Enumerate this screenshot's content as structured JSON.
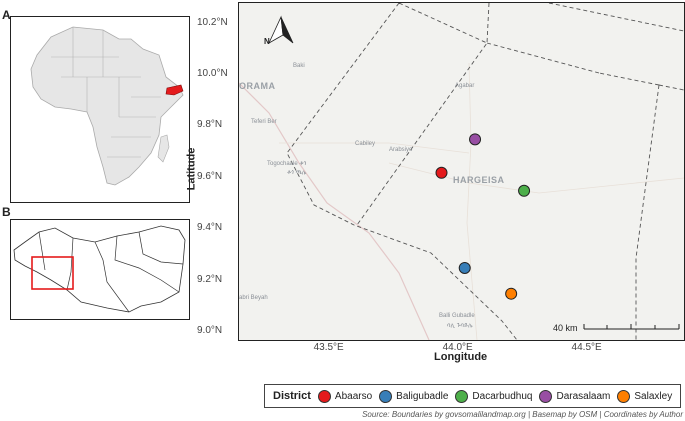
{
  "panels": {
    "a_label": "A",
    "b_label": "B"
  },
  "map": {
    "x_ticks": [
      "43.5°E",
      "44.0°E",
      "44.5°E"
    ],
    "y_ticks": [
      "10.2°N",
      "10.0°N",
      "9.8°N",
      "9.6°N",
      "9.4°N",
      "9.2°N",
      "9.0°N"
    ],
    "x_title": "Longitude",
    "y_title": "Latitude",
    "north_label": "N",
    "scale_label": "40 km",
    "basemap_labels": {
      "orama": "ORAMA",
      "baki": "Baki",
      "agabar": "Agabar",
      "teferi_ber": "Teferi Ber",
      "cabiley": "Cabiley",
      "arabsiyo": "Arabsiyo",
      "togochaale": "Togochaale ቶጎ",
      "togochaale2": "ቶጎ ጫሌ",
      "hargeisa": "HARGEISA",
      "abri_beyah": "abri Beyah",
      "balli_gubadle": "Balli Gubadle",
      "balli_gubadle2": "ባሊ ጉባድሌ"
    }
  },
  "districts": [
    {
      "name": "Abaarso",
      "lon": 43.93,
      "lat": 9.62,
      "color": "#e41a1c"
    },
    {
      "name": "Baligubadle",
      "lon": 44.02,
      "lat": 9.25,
      "color": "#377eb8"
    },
    {
      "name": "Dacarbudhuq",
      "lon": 44.25,
      "lat": 9.55,
      "color": "#4daf4a"
    },
    {
      "name": "Darasalaam",
      "lon": 44.06,
      "lat": 9.75,
      "color": "#984ea3"
    },
    {
      "name": "Salaxley",
      "lon": 44.2,
      "lat": 9.15,
      "color": "#ff7f00"
    }
  ],
  "legend": {
    "title": "District"
  },
  "source_text": "Source: Boundaries by govsomalilandmap.org | Basemap by OSM | Coordinates by Author",
  "colors": {
    "highlight": "#e41a1c",
    "land": "#e6e6e6"
  }
}
